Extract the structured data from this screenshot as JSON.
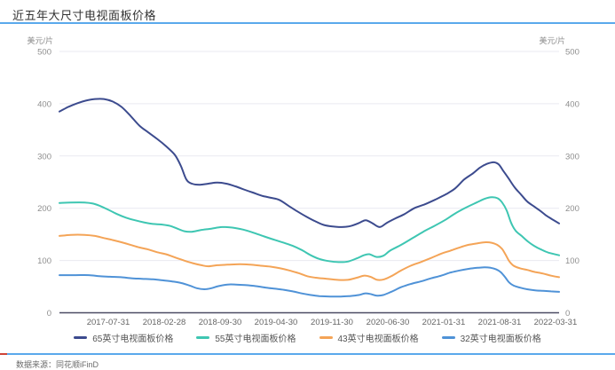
{
  "header": {
    "title": "近五年大尺寸电视面板价格"
  },
  "footer": {
    "source": "数据来源：同花顺iFinD"
  },
  "colors": {
    "divider_blue": "#5aa9ec",
    "divider_red_accent": "#cd4438",
    "gridline": "#e9e9f1",
    "axis_line": "#4c4c64",
    "y_tick_text": "#8e8e8e",
    "x_tick_text": "#666666",
    "legend_text": "#555555"
  },
  "chart_data": {
    "type": "line",
    "title": "近五年大尺寸电视面板价格",
    "y_unit_label": "美元/片",
    "ylabel": "美元/片",
    "xlabel": "",
    "ylim": [
      0,
      500
    ],
    "y_ticks": [
      0,
      100,
      200,
      300,
      400,
      500
    ],
    "grid": true,
    "dual_y_axis": true,
    "legend_position": "bottom",
    "x_tick_labels": [
      "2017-07-31",
      "2018-02-28",
      "2018-09-30",
      "2019-04-30",
      "2019-11-30",
      "2020-06-30",
      "2021-01-31",
      "2021-08-31",
      "2022-03-31"
    ],
    "series": [
      {
        "name": "65英寸电视面板价格",
        "color": "#3c4b8e",
        "points": [
          [
            0,
            385
          ],
          [
            0.018,
            394
          ],
          [
            0.036,
            401
          ],
          [
            0.053,
            406
          ],
          [
            0.071,
            409
          ],
          [
            0.089,
            409
          ],
          [
            0.107,
            404
          ],
          [
            0.124,
            394
          ],
          [
            0.142,
            377
          ],
          [
            0.16,
            358
          ],
          [
            0.178,
            345
          ],
          [
            0.195,
            333
          ],
          [
            0.213,
            319
          ],
          [
            0.231,
            302
          ],
          [
            0.243,
            281
          ],
          [
            0.254,
            255
          ],
          [
            0.265,
            247
          ],
          [
            0.281,
            245
          ],
          [
            0.298,
            247
          ],
          [
            0.316,
            249
          ],
          [
            0.334,
            247
          ],
          [
            0.352,
            242
          ],
          [
            0.369,
            236
          ],
          [
            0.387,
            230
          ],
          [
            0.405,
            224
          ],
          [
            0.423,
            220
          ],
          [
            0.44,
            216
          ],
          [
            0.458,
            205
          ],
          [
            0.476,
            194
          ],
          [
            0.494,
            184
          ],
          [
            0.512,
            175
          ],
          [
            0.529,
            168
          ],
          [
            0.547,
            165
          ],
          [
            0.565,
            164
          ],
          [
            0.583,
            166
          ],
          [
            0.6,
            172
          ],
          [
            0.613,
            177
          ],
          [
            0.627,
            171
          ],
          [
            0.641,
            164
          ],
          [
            0.655,
            172
          ],
          [
            0.671,
            180
          ],
          [
            0.689,
            188
          ],
          [
            0.71,
            200
          ],
          [
            0.73,
            207
          ],
          [
            0.751,
            216
          ],
          [
            0.774,
            227
          ],
          [
            0.792,
            238
          ],
          [
            0.81,
            255
          ],
          [
            0.828,
            267
          ],
          [
            0.842,
            278
          ],
          [
            0.856,
            285
          ],
          [
            0.869,
            288
          ],
          [
            0.879,
            284
          ],
          [
            0.888,
            272
          ],
          [
            0.899,
            257
          ],
          [
            0.911,
            240
          ],
          [
            0.924,
            226
          ],
          [
            0.936,
            213
          ],
          [
            0.949,
            204
          ],
          [
            0.961,
            196
          ],
          [
            0.973,
            187
          ],
          [
            0.986,
            179
          ],
          [
            1,
            171
          ]
        ]
      },
      {
        "name": "55英寸电视面板价格",
        "color": "#3ec6b2",
        "points": [
          [
            0,
            210
          ],
          [
            0.023,
            211
          ],
          [
            0.05,
            211
          ],
          [
            0.067,
            209
          ],
          [
            0.082,
            204
          ],
          [
            0.098,
            197
          ],
          [
            0.115,
            189
          ],
          [
            0.133,
            182
          ],
          [
            0.151,
            177
          ],
          [
            0.169,
            173
          ],
          [
            0.187,
            170
          ],
          [
            0.204,
            169
          ],
          [
            0.222,
            166
          ],
          [
            0.236,
            161
          ],
          [
            0.25,
            156
          ],
          [
            0.265,
            155
          ],
          [
            0.282,
            158
          ],
          [
            0.304,
            161
          ],
          [
            0.325,
            164
          ],
          [
            0.346,
            163
          ],
          [
            0.368,
            159
          ],
          [
            0.389,
            153
          ],
          [
            0.41,
            146
          ],
          [
            0.432,
            139
          ],
          [
            0.449,
            134
          ],
          [
            0.467,
            128
          ],
          [
            0.485,
            120
          ],
          [
            0.503,
            110
          ],
          [
            0.52,
            103
          ],
          [
            0.538,
            99
          ],
          [
            0.559,
            97
          ],
          [
            0.577,
            98
          ],
          [
            0.595,
            104
          ],
          [
            0.609,
            110
          ],
          [
            0.62,
            112
          ],
          [
            0.634,
            107
          ],
          [
            0.648,
            109
          ],
          [
            0.662,
            119
          ],
          [
            0.684,
            130
          ],
          [
            0.707,
            143
          ],
          [
            0.728,
            155
          ],
          [
            0.75,
            166
          ],
          [
            0.771,
            177
          ],
          [
            0.792,
            190
          ],
          [
            0.813,
            201
          ],
          [
            0.835,
            211
          ],
          [
            0.851,
            218
          ],
          [
            0.865,
            221
          ],
          [
            0.877,
            219
          ],
          [
            0.886,
            211
          ],
          [
            0.895,
            196
          ],
          [
            0.904,
            172
          ],
          [
            0.913,
            157
          ],
          [
            0.925,
            147
          ],
          [
            0.938,
            136
          ],
          [
            0.95,
            128
          ],
          [
            0.964,
            121
          ],
          [
            0.979,
            115
          ],
          [
            1,
            110
          ]
        ]
      },
      {
        "name": "43英寸电视面板价格",
        "color": "#f4a457",
        "points": [
          [
            0,
            147
          ],
          [
            0.023,
            149
          ],
          [
            0.05,
            149
          ],
          [
            0.071,
            147
          ],
          [
            0.089,
            143
          ],
          [
            0.107,
            139
          ],
          [
            0.124,
            135
          ],
          [
            0.142,
            130
          ],
          [
            0.16,
            125
          ],
          [
            0.178,
            121
          ],
          [
            0.195,
            116
          ],
          [
            0.213,
            112
          ],
          [
            0.231,
            106
          ],
          [
            0.249,
            100
          ],
          [
            0.266,
            95
          ],
          [
            0.284,
            91
          ],
          [
            0.298,
            89
          ],
          [
            0.316,
            91
          ],
          [
            0.337,
            92
          ],
          [
            0.361,
            93
          ],
          [
            0.382,
            92
          ],
          [
            0.403,
            90
          ],
          [
            0.425,
            88
          ],
          [
            0.442,
            85
          ],
          [
            0.46,
            81
          ],
          [
            0.478,
            76
          ],
          [
            0.496,
            70
          ],
          [
            0.513,
            67
          ],
          [
            0.535,
            65
          ],
          [
            0.556,
            63
          ],
          [
            0.577,
            63
          ],
          [
            0.595,
            67
          ],
          [
            0.609,
            71
          ],
          [
            0.622,
            69
          ],
          [
            0.636,
            63
          ],
          [
            0.65,
            64
          ],
          [
            0.666,
            71
          ],
          [
            0.684,
            81
          ],
          [
            0.703,
            90
          ],
          [
            0.723,
            97
          ],
          [
            0.744,
            105
          ],
          [
            0.764,
            113
          ],
          [
            0.783,
            119
          ],
          [
            0.801,
            125
          ],
          [
            0.819,
            130
          ],
          [
            0.837,
            133
          ],
          [
            0.853,
            135
          ],
          [
            0.865,
            134
          ],
          [
            0.876,
            130
          ],
          [
            0.886,
            122
          ],
          [
            0.893,
            111
          ],
          [
            0.9,
            99
          ],
          [
            0.909,
            90
          ],
          [
            0.922,
            85
          ],
          [
            0.936,
            82
          ],
          [
            0.952,
            78
          ],
          [
            0.968,
            75
          ],
          [
            0.984,
            71
          ],
          [
            1,
            68
          ]
        ]
      },
      {
        "name": "32英寸电视面板价格",
        "color": "#4f92d7",
        "points": [
          [
            0,
            72
          ],
          [
            0.032,
            72
          ],
          [
            0.059,
            72
          ],
          [
            0.08,
            70
          ],
          [
            0.101,
            69
          ],
          [
            0.123,
            68
          ],
          [
            0.144,
            66
          ],
          [
            0.165,
            65
          ],
          [
            0.187,
            64
          ],
          [
            0.208,
            62
          ],
          [
            0.226,
            60
          ],
          [
            0.243,
            57
          ],
          [
            0.261,
            52
          ],
          [
            0.275,
            47
          ],
          [
            0.29,
            45
          ],
          [
            0.304,
            47
          ],
          [
            0.318,
            51
          ],
          [
            0.336,
            54
          ],
          [
            0.353,
            54
          ],
          [
            0.371,
            53
          ],
          [
            0.393,
            51
          ],
          [
            0.414,
            48
          ],
          [
            0.432,
            46
          ],
          [
            0.449,
            44
          ],
          [
            0.467,
            41
          ],
          [
            0.485,
            37
          ],
          [
            0.503,
            34
          ],
          [
            0.52,
            32
          ],
          [
            0.542,
            31
          ],
          [
            0.563,
            31
          ],
          [
            0.581,
            32
          ],
          [
            0.599,
            34
          ],
          [
            0.611,
            37
          ],
          [
            0.622,
            36
          ],
          [
            0.634,
            33
          ],
          [
            0.648,
            34
          ],
          [
            0.666,
            41
          ],
          [
            0.684,
            49
          ],
          [
            0.703,
            55
          ],
          [
            0.723,
            60
          ],
          [
            0.744,
            66
          ],
          [
            0.764,
            71
          ],
          [
            0.783,
            77
          ],
          [
            0.801,
            81
          ],
          [
            0.819,
            84
          ],
          [
            0.837,
            86
          ],
          [
            0.851,
            87
          ],
          [
            0.863,
            86
          ],
          [
            0.874,
            83
          ],
          [
            0.883,
            78
          ],
          [
            0.892,
            68
          ],
          [
            0.9,
            58
          ],
          [
            0.909,
            52
          ],
          [
            0.922,
            48
          ],
          [
            0.936,
            45
          ],
          [
            0.952,
            43
          ],
          [
            0.968,
            42
          ],
          [
            0.984,
            41
          ],
          [
            1,
            40
          ]
        ]
      }
    ]
  }
}
